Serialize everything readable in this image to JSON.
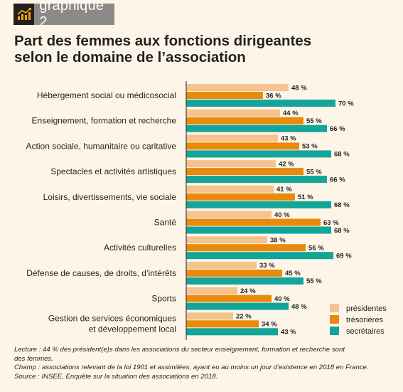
{
  "header": {
    "badge_label": "graphique 2"
  },
  "colors": {
    "presidentes": "#f6c28e",
    "tresorieres": "#e88a0c",
    "secretaires": "#13a49a"
  },
  "chart_data": {
    "type": "bar",
    "orientation": "horizontal",
    "title": "Part des femmes aux fonctions dirigeantes selon le domaine de l’association",
    "title_lines": [
      "Part des femmes aux fonctions dirigeantes",
      "selon le domaine de l’association"
    ],
    "categories": [
      [
        "Hébergement social ou médicosocial"
      ],
      [
        "Enseignement, formation et recherche"
      ],
      [
        "Action sociale, humanitaire ou caritative"
      ],
      [
        "Spectacles et activités artistiques"
      ],
      [
        "Loisirs, divertissements, vie sociale"
      ],
      [
        "Santé"
      ],
      [
        "Activités culturelles"
      ],
      [
        "Défense de causes, de droits, d’intérêts"
      ],
      [
        "Sports"
      ],
      [
        "Gestion de services économiques",
        "et développement local"
      ]
    ],
    "series": [
      {
        "name": "présidentes",
        "color": "#f6c28e",
        "values": [
          48,
          44,
          43,
          42,
          41,
          40,
          38,
          33,
          24,
          22
        ]
      },
      {
        "name": "trésorières",
        "color": "#e88a0c",
        "values": [
          36,
          55,
          53,
          55,
          51,
          63,
          56,
          45,
          40,
          34
        ]
      },
      {
        "name": "secrétaires",
        "color": "#13a49a",
        "values": [
          70,
          66,
          68,
          66,
          68,
          68,
          69,
          55,
          48,
          43
        ]
      }
    ],
    "unit": "%",
    "xlim": [
      0,
      100
    ],
    "grid": false,
    "legend_position": "bottom-right"
  },
  "footer": {
    "lines": [
      "Lecture : 44 % des président(e)s dans les associations du secteur enseignement, formation et recherche sont",
      "des femmes.",
      "Champ : associations relevant de la loi 1901 et assimilées, ayant eu au moins un jour d’existence en 2018 en France.",
      "Source : INSEE, Enquête sur la situation des associations en 2018."
    ]
  }
}
